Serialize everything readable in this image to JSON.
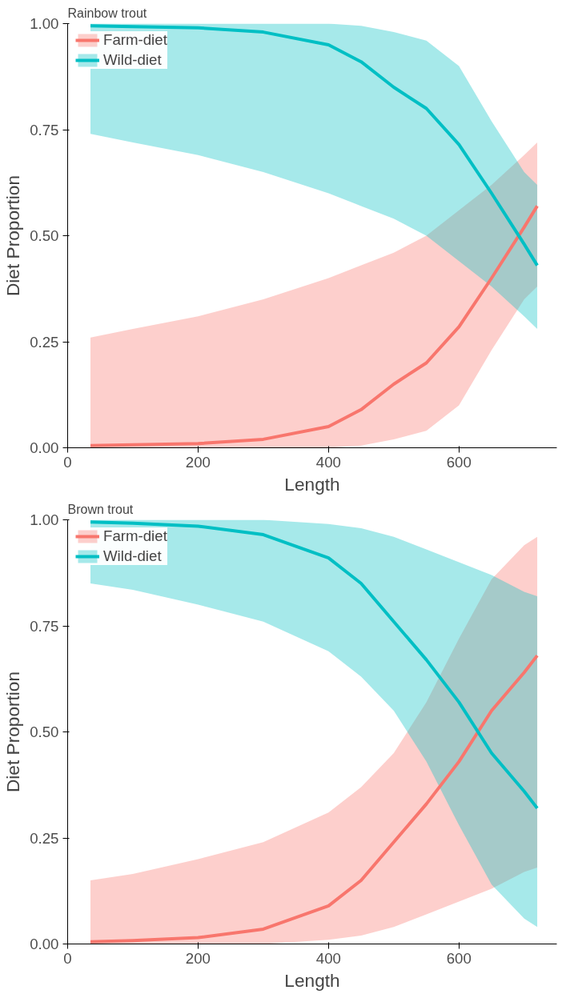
{
  "chart_data": [
    {
      "type": "line",
      "title": "Rainbow trout",
      "xlabel": "Length",
      "ylabel": "Diet Proportion",
      "xlim": [
        0,
        750
      ],
      "ylim": [
        0,
        1
      ],
      "xticks": [
        0,
        200,
        400,
        600
      ],
      "yticks": [
        {
          "value": 0,
          "label": "0.00"
        },
        {
          "value": 0.25,
          "label": "0.25"
        },
        {
          "value": 0.5,
          "label": "0.50"
        },
        {
          "value": 0.75,
          "label": "0.75"
        },
        {
          "value": 1,
          "label": "1.00"
        }
      ],
      "grid": false,
      "legend": "top left",
      "marker": "none",
      "line_style": "solid",
      "x": [
        35,
        100,
        200,
        300,
        400,
        450,
        500,
        550,
        600,
        650,
        700,
        720
      ],
      "series": [
        {
          "name": "Farm-diet",
          "color": "#f8766d",
          "values": [
            0.005,
            0.007,
            0.01,
            0.02,
            0.05,
            0.09,
            0.15,
            0.2,
            0.285,
            0.4,
            0.52,
            0.57
          ],
          "lower": [
            0,
            0,
            0,
            0,
            0,
            0.005,
            0.02,
            0.04,
            0.1,
            0.23,
            0.35,
            0.38
          ],
          "upper": [
            0.26,
            0.28,
            0.31,
            0.35,
            0.4,
            0.43,
            0.46,
            0.5,
            0.56,
            0.62,
            0.69,
            0.72
          ]
        },
        {
          "name": "Wild-diet",
          "color": "#00bfc4",
          "values": [
            0.995,
            0.993,
            0.99,
            0.98,
            0.95,
            0.91,
            0.85,
            0.8,
            0.715,
            0.6,
            0.48,
            0.43
          ],
          "lower": [
            0.74,
            0.72,
            0.69,
            0.65,
            0.6,
            0.57,
            0.54,
            0.5,
            0.44,
            0.38,
            0.31,
            0.28
          ],
          "upper": [
            1,
            1,
            1,
            1,
            1,
            0.995,
            0.98,
            0.96,
            0.9,
            0.77,
            0.65,
            0.62
          ]
        }
      ]
    },
    {
      "type": "line",
      "title": "Brown trout",
      "xlabel": "Length",
      "ylabel": "Diet Proportion",
      "xlim": [
        0,
        750
      ],
      "ylim": [
        0,
        1
      ],
      "xticks": [
        0,
        200,
        400,
        600
      ],
      "yticks": [
        {
          "value": 0,
          "label": "0.00"
        },
        {
          "value": 0.25,
          "label": "0.25"
        },
        {
          "value": 0.5,
          "label": "0.50"
        },
        {
          "value": 0.75,
          "label": "0.75"
        },
        {
          "value": 1,
          "label": "1.00"
        }
      ],
      "grid": false,
      "legend": "top left",
      "marker": "none",
      "line_style": "solid",
      "x": [
        35,
        100,
        200,
        300,
        400,
        450,
        500,
        550,
        600,
        650,
        700,
        720
      ],
      "series": [
        {
          "name": "Farm-diet",
          "color": "#f8766d",
          "values": [
            0.005,
            0.008,
            0.015,
            0.035,
            0.09,
            0.15,
            0.24,
            0.33,
            0.43,
            0.55,
            0.64,
            0.68
          ],
          "lower": [
            0,
            0,
            0,
            0,
            0.01,
            0.02,
            0.04,
            0.07,
            0.1,
            0.13,
            0.17,
            0.18
          ],
          "upper": [
            0.15,
            0.165,
            0.2,
            0.24,
            0.31,
            0.37,
            0.45,
            0.57,
            0.72,
            0.86,
            0.94,
            0.96
          ]
        },
        {
          "name": "Wild-diet",
          "color": "#00bfc4",
          "values": [
            0.995,
            0.992,
            0.985,
            0.965,
            0.91,
            0.85,
            0.76,
            0.67,
            0.57,
            0.45,
            0.36,
            0.32
          ],
          "lower": [
            0.85,
            0.835,
            0.8,
            0.76,
            0.69,
            0.63,
            0.55,
            0.43,
            0.28,
            0.14,
            0.06,
            0.04
          ],
          "upper": [
            1,
            1,
            1,
            1,
            0.99,
            0.98,
            0.96,
            0.93,
            0.9,
            0.87,
            0.83,
            0.82
          ]
        }
      ]
    }
  ]
}
